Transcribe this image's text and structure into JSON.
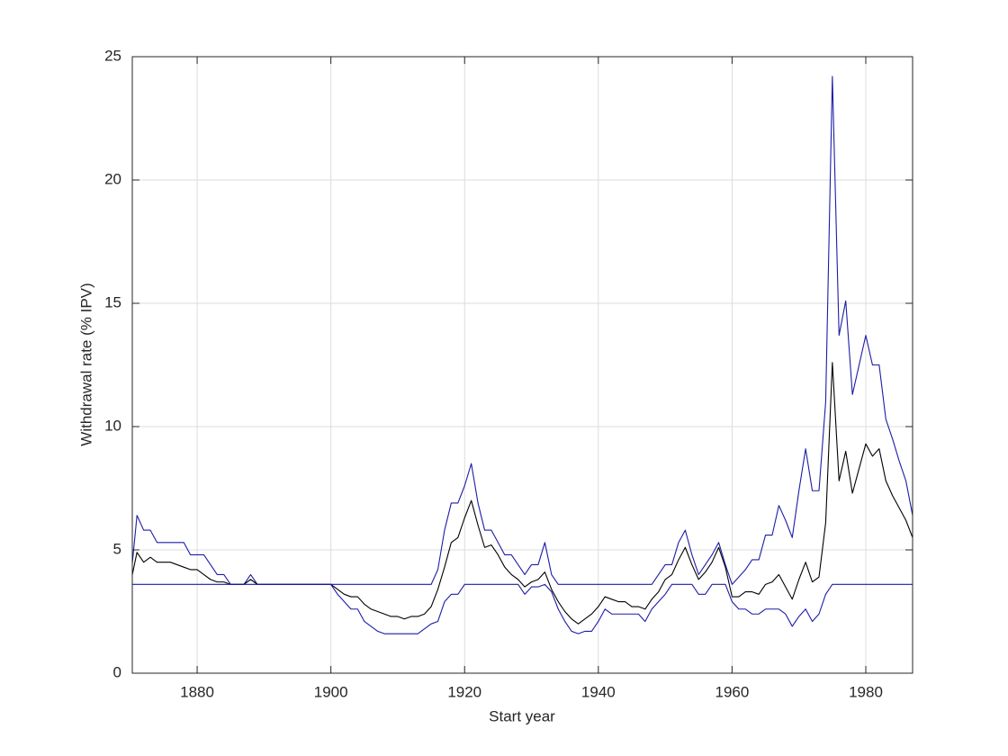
{
  "chart_data": {
    "type": "line",
    "xlabel": "Start year",
    "ylabel": "Withdrawal rate (% IPV)",
    "x": [
      1870,
      1871,
      1872,
      1873,
      1874,
      1875,
      1876,
      1877,
      1878,
      1879,
      1880,
      1881,
      1882,
      1883,
      1884,
      1885,
      1886,
      1887,
      1888,
      1889,
      1890,
      1891,
      1892,
      1893,
      1894,
      1895,
      1896,
      1897,
      1898,
      1899,
      1900,
      1901,
      1902,
      1903,
      1904,
      1905,
      1906,
      1907,
      1908,
      1909,
      1910,
      1911,
      1912,
      1913,
      1914,
      1915,
      1916,
      1917,
      1918,
      1919,
      1920,
      1921,
      1922,
      1923,
      1924,
      1925,
      1926,
      1927,
      1928,
      1929,
      1930,
      1931,
      1932,
      1933,
      1934,
      1935,
      1936,
      1937,
      1938,
      1939,
      1940,
      1941,
      1942,
      1943,
      1944,
      1945,
      1946,
      1947,
      1948,
      1949,
      1950,
      1951,
      1952,
      1953,
      1954,
      1955,
      1956,
      1957,
      1958,
      1959,
      1960,
      1961,
      1962,
      1963,
      1964,
      1965,
      1966,
      1967,
      1968,
      1969,
      1970,
      1971,
      1972,
      1973,
      1974,
      1975,
      1976,
      1977,
      1978,
      1979,
      1980,
      1981,
      1982,
      1983,
      1984,
      1985,
      1986,
      1987
    ],
    "series": [
      {
        "color": "#1c1ca8",
        "values": [
          3.6,
          6.4,
          5.8,
          5.8,
          5.3,
          5.3,
          5.3,
          5.3,
          5.3,
          4.8,
          4.8,
          4.8,
          4.4,
          4.0,
          4.0,
          3.6,
          3.6,
          3.6,
          4.0,
          3.6,
          3.6,
          3.6,
          3.6,
          3.6,
          3.6,
          3.6,
          3.6,
          3.6,
          3.6,
          3.6,
          3.6,
          3.6,
          3.6,
          3.6,
          3.6,
          3.6,
          3.6,
          3.6,
          3.6,
          3.6,
          3.6,
          3.6,
          3.6,
          3.6,
          3.6,
          3.6,
          4.2,
          5.8,
          6.9,
          6.9,
          7.6,
          8.5,
          6.9,
          5.8,
          5.8,
          5.3,
          4.8,
          4.8,
          4.4,
          4.0,
          4.4,
          4.4,
          5.3,
          4.0,
          3.6,
          3.6,
          3.6,
          3.6,
          3.6,
          3.6,
          3.6,
          3.6,
          3.6,
          3.6,
          3.6,
          3.6,
          3.6,
          3.6,
          3.6,
          4.0,
          4.4,
          4.4,
          5.3,
          5.8,
          4.8,
          4.0,
          4.4,
          4.8,
          5.3,
          4.4,
          3.6,
          3.9,
          4.2,
          4.6,
          4.6,
          5.6,
          5.6,
          6.8,
          6.2,
          5.5,
          7.4,
          9.1,
          7.4,
          7.4,
          11.0,
          24.2,
          13.7,
          15.1,
          11.3,
          12.5,
          13.7,
          12.5,
          12.5,
          10.3,
          9.5,
          8.6,
          7.8,
          6.4
        ]
      },
      {
        "color": "#000000",
        "values": [
          3.6,
          4.9,
          4.5,
          4.7,
          4.5,
          4.5,
          4.5,
          4.4,
          4.3,
          4.2,
          4.2,
          4.0,
          3.8,
          3.7,
          3.7,
          3.6,
          3.6,
          3.6,
          3.8,
          3.6,
          3.6,
          3.6,
          3.6,
          3.6,
          3.6,
          3.6,
          3.6,
          3.6,
          3.6,
          3.6,
          3.6,
          3.4,
          3.2,
          3.1,
          3.1,
          2.8,
          2.6,
          2.5,
          2.4,
          2.3,
          2.3,
          2.2,
          2.3,
          2.3,
          2.4,
          2.7,
          3.4,
          4.3,
          5.3,
          5.5,
          6.3,
          7.0,
          6.0,
          5.1,
          5.2,
          4.8,
          4.3,
          4.0,
          3.8,
          3.5,
          3.7,
          3.8,
          4.1,
          3.4,
          2.9,
          2.5,
          2.2,
          2.0,
          2.2,
          2.4,
          2.7,
          3.1,
          3.0,
          2.9,
          2.9,
          2.7,
          2.7,
          2.6,
          3.0,
          3.3,
          3.8,
          4.0,
          4.6,
          5.1,
          4.4,
          3.8,
          4.1,
          4.5,
          5.1,
          4.3,
          3.1,
          3.1,
          3.3,
          3.3,
          3.2,
          3.6,
          3.7,
          4.0,
          3.5,
          3.0,
          3.8,
          4.5,
          3.7,
          3.9,
          6.1,
          12.6,
          7.8,
          9.0,
          7.3,
          8.3,
          9.3,
          8.8,
          9.1,
          7.8,
          7.2,
          6.7,
          6.2,
          5.5
        ]
      },
      {
        "color": "#1c1ca8",
        "values": [
          3.6,
          3.6,
          3.6,
          3.6,
          3.6,
          3.6,
          3.6,
          3.6,
          3.6,
          3.6,
          3.6,
          3.6,
          3.6,
          3.6,
          3.6,
          3.6,
          3.6,
          3.6,
          3.6,
          3.6,
          3.6,
          3.6,
          3.6,
          3.6,
          3.6,
          3.6,
          3.6,
          3.6,
          3.6,
          3.6,
          3.6,
          3.2,
          2.9,
          2.6,
          2.6,
          2.1,
          1.9,
          1.7,
          1.6,
          1.6,
          1.6,
          1.6,
          1.6,
          1.6,
          1.8,
          2.0,
          2.1,
          2.9,
          3.2,
          3.2,
          3.6,
          3.6,
          3.6,
          3.6,
          3.6,
          3.6,
          3.6,
          3.6,
          3.6,
          3.2,
          3.5,
          3.5,
          3.6,
          3.3,
          2.6,
          2.1,
          1.7,
          1.6,
          1.7,
          1.7,
          2.1,
          2.6,
          2.4,
          2.4,
          2.4,
          2.4,
          2.4,
          2.1,
          2.6,
          2.9,
          3.2,
          3.6,
          3.6,
          3.6,
          3.6,
          3.2,
          3.2,
          3.6,
          3.6,
          3.6,
          2.9,
          2.6,
          2.6,
          2.4,
          2.4,
          2.6,
          2.6,
          2.6,
          2.4,
          1.9,
          2.3,
          2.6,
          2.1,
          2.4,
          3.2,
          3.6,
          3.6,
          3.6,
          3.6,
          3.6,
          3.6,
          3.6,
          3.6,
          3.6,
          3.6,
          3.6,
          3.6,
          3.6
        ]
      }
    ],
    "xlim": [
      1870.3,
      1987
    ],
    "xticks": [
      1880,
      1900,
      1920,
      1940,
      1960,
      1980
    ],
    "ylim": [
      0,
      25
    ],
    "yticks": [
      0,
      5,
      10,
      15,
      20,
      25
    ],
    "grid": true
  }
}
